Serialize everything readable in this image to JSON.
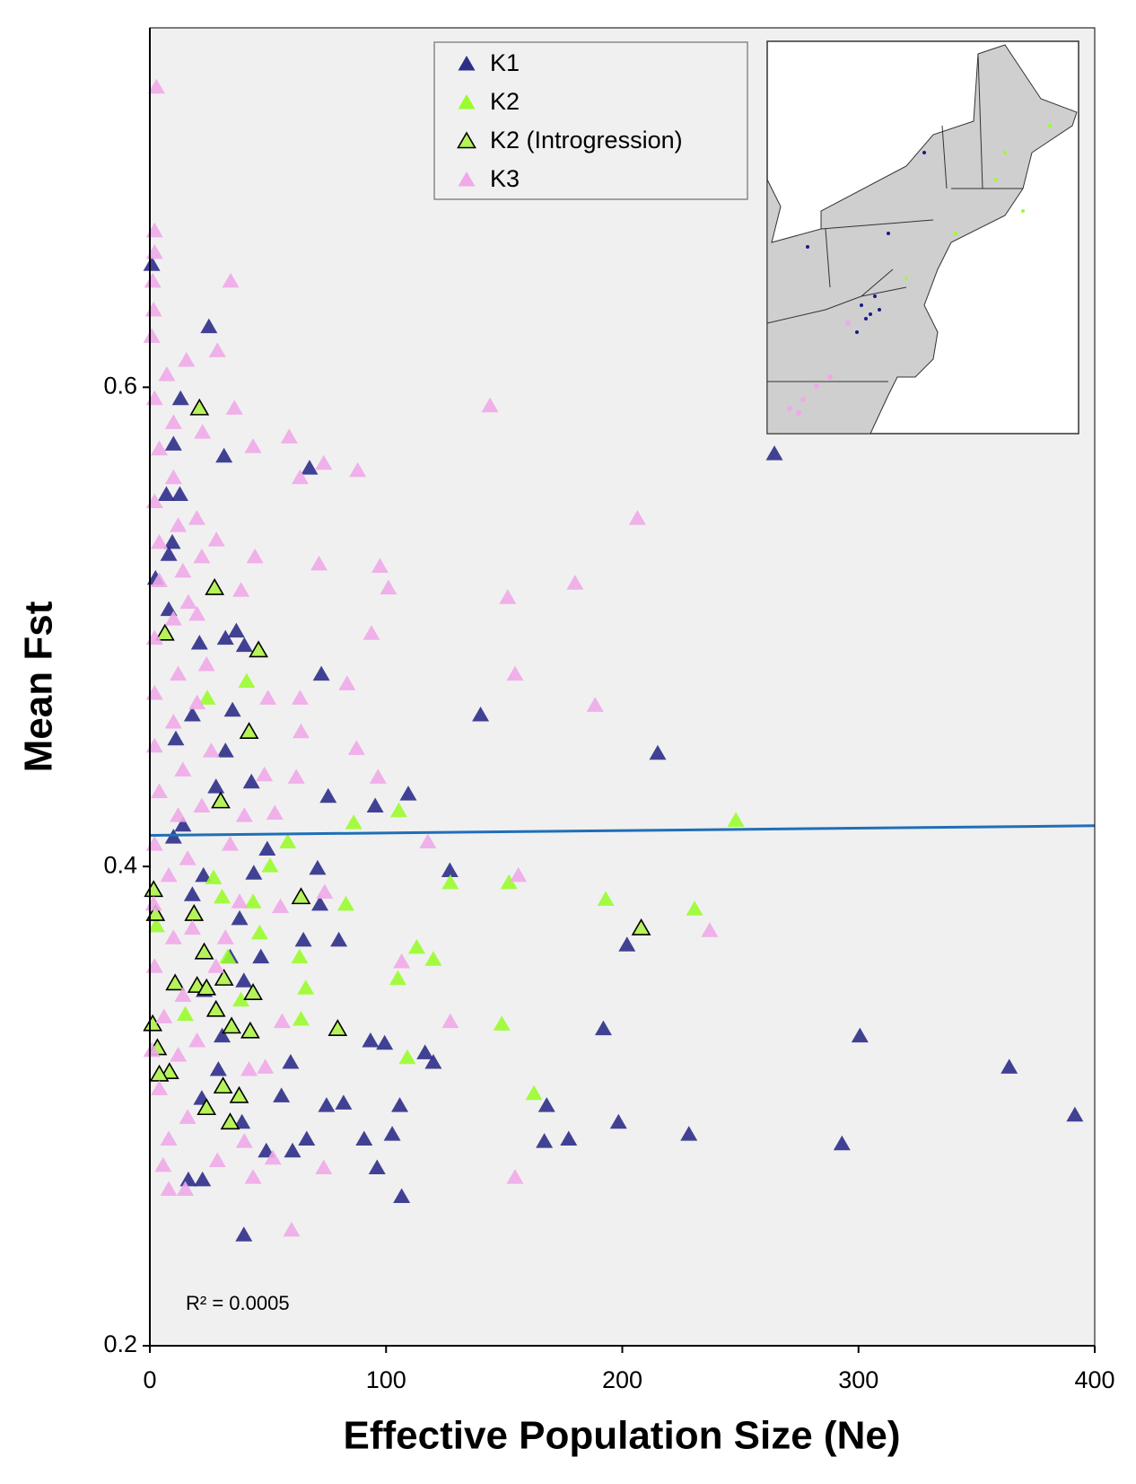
{
  "chart_data": {
    "type": "scatter",
    "x_label": "Effective Population Size (Ne)",
    "y_label": "Mean Fst",
    "annotation": "R² = 0.0005",
    "xlim": [
      0,
      400
    ],
    "ylim": [
      0.2,
      0.75
    ],
    "xticks": [
      0,
      100,
      200,
      300,
      400
    ],
    "yticks": [
      0.2,
      0.4,
      0.6
    ],
    "grid": false,
    "legend": "top-center",
    "trendline": {
      "color": "#1f6fb8",
      "x": [
        0,
        400
      ],
      "y": [
        0.413,
        0.417
      ]
    },
    "series": [
      {
        "name": "K1",
        "color": "#2e2e8a",
        "x": [
          264.4,
          0.8,
          25,
          13,
          31.4,
          67.6,
          10,
          7,
          12.7,
          9.5,
          8,
          2.4,
          8,
          36.6,
          32,
          40,
          21,
          72.6,
          35,
          18,
          140,
          11,
          215,
          32,
          28,
          43,
          75.5,
          95.4,
          109.4,
          14,
          10,
          49.7,
          71,
          127,
          44,
          22.7,
          72,
          18,
          38,
          65,
          80,
          202,
          34,
          47,
          39.8,
          23,
          192,
          300.6,
          93.4,
          99.4,
          30.6,
          116.5,
          120,
          59.6,
          363.8,
          29,
          168,
          105.8,
          74.8,
          82,
          55.7,
          22,
          391.6,
          198.4,
          39,
          102.6,
          90.7,
          66.4,
          167,
          177.3,
          228.2,
          293,
          49.3,
          60.4,
          96.2,
          16.3,
          22.3,
          106.6,
          39.8
        ],
        "y": [
          0.572,
          0.651,
          0.625,
          0.595,
          0.571,
          0.566,
          0.576,
          0.555,
          0.555,
          0.535,
          0.53,
          0.52,
          0.507,
          0.498,
          0.495,
          0.492,
          0.493,
          0.48,
          0.465,
          0.463,
          0.463,
          0.453,
          0.447,
          0.448,
          0.433,
          0.435,
          0.429,
          0.425,
          0.43,
          0.417,
          0.412,
          0.407,
          0.399,
          0.398,
          0.397,
          0.396,
          0.384,
          0.388,
          0.378,
          0.369,
          0.369,
          0.367,
          0.362,
          0.362,
          0.352,
          0.348,
          0.332,
          0.329,
          0.327,
          0.326,
          0.329,
          0.322,
          0.318,
          0.318,
          0.316,
          0.315,
          0.3,
          0.3,
          0.3,
          0.301,
          0.304,
          0.303,
          0.296,
          0.293,
          0.293,
          0.288,
          0.286,
          0.286,
          0.285,
          0.286,
          0.288,
          0.284,
          0.281,
          0.281,
          0.274,
          0.269,
          0.269,
          0.262,
          0.246
        ]
      },
      {
        "name": "K2",
        "color": "#9afc2e",
        "x": [
          41,
          24.3,
          86.3,
          105.4,
          248.1,
          58.4,
          50.9,
          27,
          127.2,
          152,
          30.6,
          43.7,
          83,
          193,
          230.6,
          46.5,
          113,
          120,
          63.4,
          33,
          105,
          66,
          149,
          64,
          109,
          162.6,
          15,
          38.6,
          2.8
        ],
        "y": [
          0.477,
          0.47,
          0.418,
          0.423,
          0.419,
          0.41,
          0.4,
          0.395,
          0.393,
          0.393,
          0.387,
          0.385,
          0.384,
          0.386,
          0.382,
          0.372,
          0.366,
          0.361,
          0.362,
          0.362,
          0.353,
          0.349,
          0.334,
          0.336,
          0.32,
          0.305,
          0.338,
          0.344,
          0.375
        ]
      },
      {
        "name": "K2 (Introgression)",
        "color": "#b6f25a",
        "edgecolor": "#000000",
        "x": [
          21,
          27.4,
          6.4,
          46,
          42,
          30,
          64,
          208,
          1.6,
          2.4,
          18.7,
          23,
          10.7,
          20,
          31.4,
          24,
          43.7,
          28,
          1.2,
          3.2,
          79.5,
          34.6,
          42.5,
          8.3,
          4,
          31,
          37.8,
          24,
          34
        ],
        "y": [
          0.591,
          0.516,
          0.497,
          0.49,
          0.456,
          0.427,
          0.387,
          0.374,
          0.39,
          0.38,
          0.38,
          0.364,
          0.351,
          0.35,
          0.353,
          0.349,
          0.347,
          0.34,
          0.334,
          0.324,
          0.332,
          0.333,
          0.331,
          0.314,
          0.313,
          0.308,
          0.304,
          0.299,
          0.293
        ]
      },
      {
        "name": "K3",
        "color": "#f0a8e8",
        "x": [
          2.8,
          2,
          34.2,
          1.6,
          28.6,
          15.5,
          7.2,
          144,
          35.8,
          22.3,
          59,
          43.7,
          73.6,
          88,
          63.6,
          206.4,
          19.9,
          28.2,
          44.5,
          71.6,
          97.4,
          180,
          101,
          151.5,
          38.6,
          16.3,
          93.8,
          154.6,
          83.5,
          50,
          63.6,
          188.5,
          64,
          87.5,
          96.6,
          62,
          48.5,
          52.9,
          117.7,
          156,
          74,
          55.3,
          237,
          106.6,
          127.2,
          48.9,
          73.6,
          60,
          154.6,
          43.7,
          5.6,
          15,
          28.6,
          40,
          52.1,
          8,
          16,
          4,
          12,
          0.8,
          20,
          6,
          14,
          2,
          10,
          18,
          1.6,
          8,
          16,
          2,
          12,
          22,
          4,
          14,
          26,
          2,
          10,
          20,
          2,
          12,
          24,
          2,
          10,
          20,
          4,
          14,
          22,
          4,
          12,
          2,
          10,
          4,
          10,
          2,
          0.8,
          1.2,
          2,
          32,
          38,
          34,
          40,
          28,
          56,
          42,
          8
        ],
        "y": [
          0.725,
          0.665,
          0.644,
          0.632,
          0.615,
          0.611,
          0.605,
          0.592,
          0.591,
          0.581,
          0.579,
          0.575,
          0.568,
          0.565,
          0.562,
          0.545,
          0.545,
          0.536,
          0.529,
          0.526,
          0.525,
          0.518,
          0.516,
          0.512,
          0.515,
          0.51,
          0.497,
          0.48,
          0.476,
          0.47,
          0.47,
          0.467,
          0.456,
          0.449,
          0.437,
          0.437,
          0.438,
          0.422,
          0.41,
          0.396,
          0.389,
          0.383,
          0.373,
          0.36,
          0.335,
          0.316,
          0.274,
          0.248,
          0.27,
          0.27,
          0.275,
          0.265,
          0.277,
          0.285,
          0.278,
          0.286,
          0.295,
          0.307,
          0.321,
          0.323,
          0.327,
          0.337,
          0.346,
          0.358,
          0.37,
          0.374,
          0.384,
          0.396,
          0.403,
          0.409,
          0.421,
          0.425,
          0.431,
          0.44,
          0.448,
          0.45,
          0.46,
          0.468,
          0.472,
          0.48,
          0.484,
          0.495,
          0.503,
          0.505,
          0.519,
          0.523,
          0.529,
          0.535,
          0.542,
          0.552,
          0.562,
          0.574,
          0.585,
          0.595,
          0.621,
          0.644,
          0.656,
          0.37,
          0.385,
          0.409,
          0.421,
          0.358,
          0.335,
          0.315,
          0.265
        ]
      }
    ]
  }
}
